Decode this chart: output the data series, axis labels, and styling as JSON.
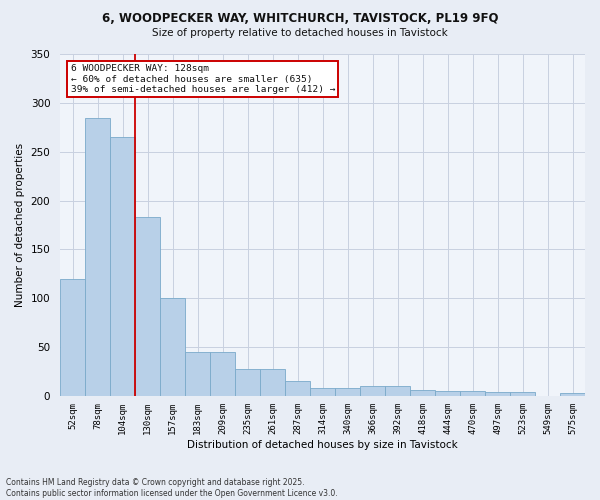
{
  "title": "6, WOODPECKER WAY, WHITCHURCH, TAVISTOCK, PL19 9FQ",
  "subtitle": "Size of property relative to detached houses in Tavistock",
  "xlabel": "Distribution of detached houses by size in Tavistock",
  "ylabel": "Number of detached properties",
  "bar_color": "#b8d0e8",
  "bar_edge_color": "#7aaaca",
  "vline_color": "#cc0000",
  "categories": [
    "52sqm",
    "78sqm",
    "104sqm",
    "130sqm",
    "157sqm",
    "183sqm",
    "209sqm",
    "235sqm",
    "261sqm",
    "287sqm",
    "314sqm",
    "340sqm",
    "366sqm",
    "392sqm",
    "418sqm",
    "444sqm",
    "470sqm",
    "497sqm",
    "523sqm",
    "549sqm",
    "575sqm"
  ],
  "values": [
    120,
    285,
    265,
    183,
    100,
    45,
    45,
    28,
    28,
    15,
    8,
    8,
    10,
    10,
    6,
    5,
    5,
    4,
    4,
    0,
    3
  ],
  "ylim": [
    0,
    350
  ],
  "yticks": [
    0,
    50,
    100,
    150,
    200,
    250,
    300,
    350
  ],
  "annotation_text": "6 WOODPECKER WAY: 128sqm\n← 60% of detached houses are smaller (635)\n39% of semi-detached houses are larger (412) →",
  "annotation_box_color": "#ffffff",
  "annotation_box_edge": "#cc0000",
  "footer_text": "Contains HM Land Registry data © Crown copyright and database right 2025.\nContains public sector information licensed under the Open Government Licence v3.0.",
  "bg_color": "#e8edf5",
  "plot_bg_color": "#f0f4fa",
  "grid_color": "#c8d0e0",
  "vline_idx": 2.5
}
